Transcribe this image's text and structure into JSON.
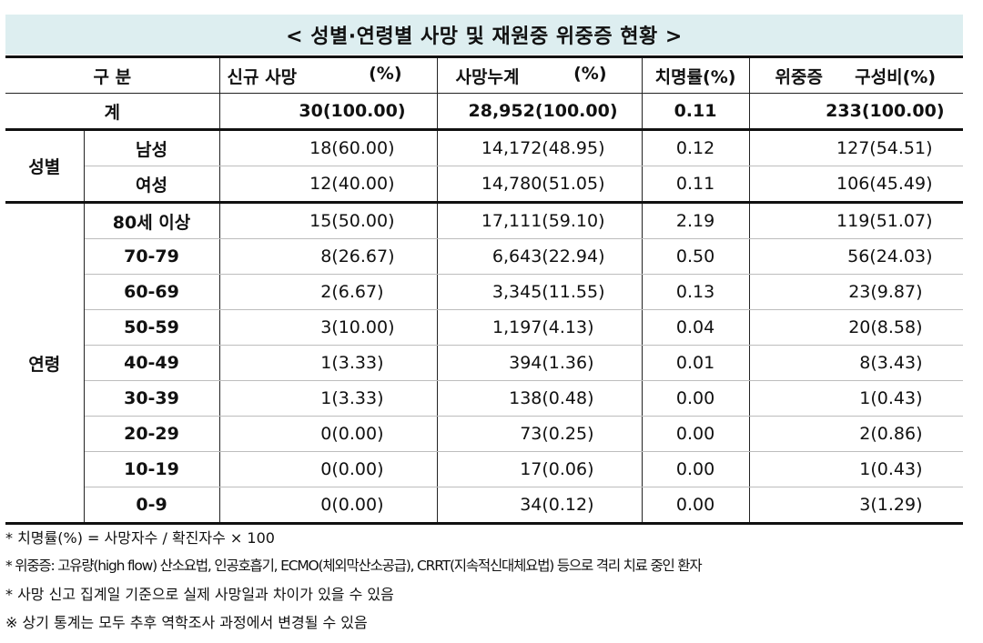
{
  "title": "< 성별·연령별 사망 및 재원중 위중증 현황 >",
  "header": {
    "category": "구 분",
    "new_deaths": "신규 사망",
    "new_deaths_pct": "(%)",
    "cum_deaths": "사망누계",
    "cum_deaths_pct": "(%)",
    "fatality_rate": "치명률(%)",
    "severe": "위중증",
    "severe_ratio": "구성비(%)"
  },
  "total": {
    "label": "계",
    "new_deaths": "30(100.00)",
    "cum_deaths": "28,952(100.00)",
    "fatality_rate": "0.11",
    "severe": "233(100.00)"
  },
  "sex": {
    "group_label": "성별",
    "rows": [
      {
        "label": "남성",
        "new_deaths": "18(60.00)",
        "cum_deaths": "14,172(48.95)",
        "fatality_rate": "0.12",
        "severe": "127(54.51)"
      },
      {
        "label": "여성",
        "new_deaths": "12(40.00)",
        "cum_deaths": "14,780(51.05)",
        "fatality_rate": "0.11",
        "severe": "106(45.49)"
      }
    ]
  },
  "age": {
    "group_label": "연령",
    "rows": [
      {
        "label": "80세 이상",
        "new_deaths": "15(50.00)",
        "cum_deaths": "17,111(59.10)",
        "fatality_rate": "2.19",
        "severe": "119(51.07)"
      },
      {
        "label": "70-79",
        "new_deaths": "8(26.67)",
        "cum_deaths": "6,643(22.94)",
        "fatality_rate": "0.50",
        "severe": "56(24.03)"
      },
      {
        "label": "60-69",
        "new_deaths": "2(6.67)",
        "cum_deaths": "3,345(11.55)",
        "fatality_rate": "0.13",
        "severe": "23(9.87)"
      },
      {
        "label": "50-59",
        "new_deaths": "3(10.00)",
        "cum_deaths": "1,197(4.13)",
        "fatality_rate": "0.04",
        "severe": "20(8.58)"
      },
      {
        "label": "40-49",
        "new_deaths": "1(3.33)",
        "cum_deaths": "394(1.36)",
        "fatality_rate": "0.01",
        "severe": "8(3.43)"
      },
      {
        "label": "30-39",
        "new_deaths": "1(3.33)",
        "cum_deaths": "138(0.48)",
        "fatality_rate": "0.00",
        "severe": "1(0.43)"
      },
      {
        "label": "20-29",
        "new_deaths": "0(0.00)",
        "cum_deaths": "73(0.25)",
        "fatality_rate": "0.00",
        "severe": "2(0.86)"
      },
      {
        "label": "10-19",
        "new_deaths": "0(0.00)",
        "cum_deaths": "17(0.06)",
        "fatality_rate": "0.00",
        "severe": "1(0.43)"
      },
      {
        "label": "0-9",
        "new_deaths": "0(0.00)",
        "cum_deaths": "34(0.12)",
        "fatality_rate": "0.00",
        "severe": "3(1.29)"
      }
    ]
  },
  "footnotes": [
    "* 치명률(%) = 사망자수 / 확진자수 × 100",
    "* 위중증: 고유량(high flow) 산소요법, 인공호흡기, ECMO(체외막산소공급), CRRT(지속적신대체요법) 등으로 격리 치료 중인 환자",
    "* 사망 신고 집계일 기준으로 실제 사망일과 차이가 있을 수 있음",
    "※ 상기 통계는 모두 추후 역학조사 과정에서 변경될 수 있음"
  ]
}
